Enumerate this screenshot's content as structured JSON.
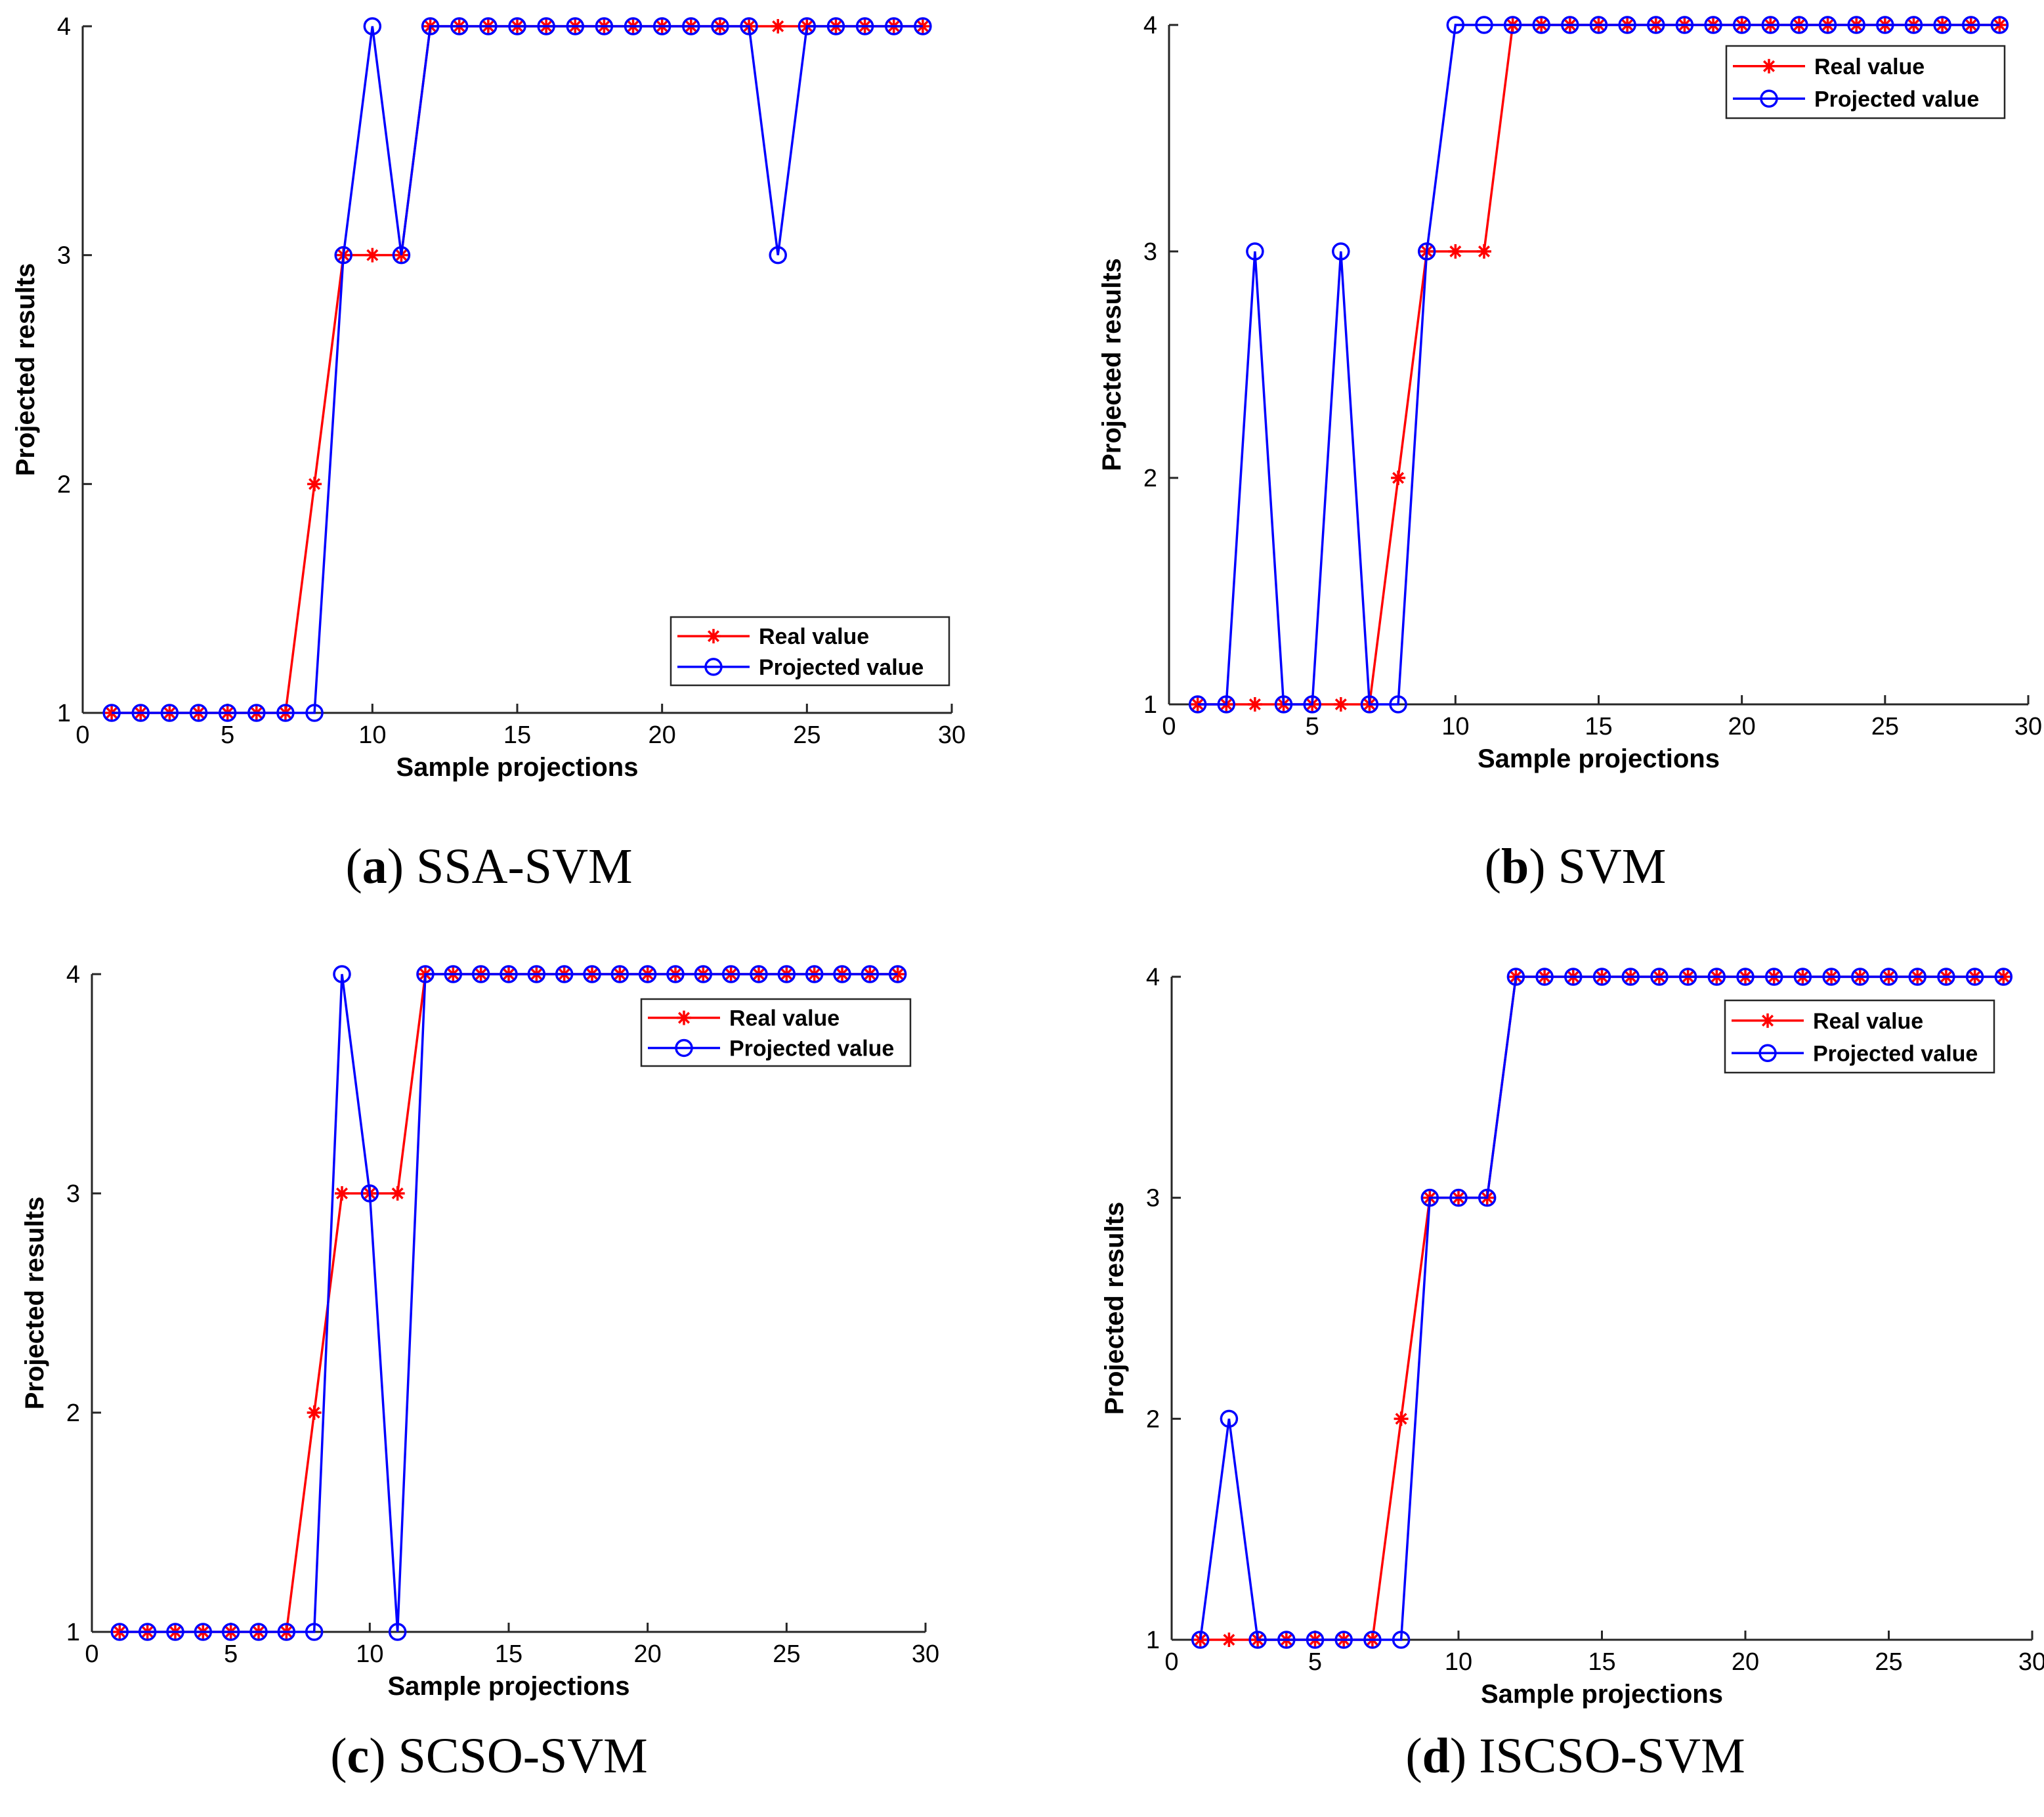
{
  "chart_data": [
    {
      "type": "line",
      "panel_letter": "a",
      "panel_name": "SSA-SVM",
      "xlabel": "Sample projections",
      "ylabel": "Projected results",
      "xlim": [
        0,
        30
      ],
      "ylim": [
        1,
        4
      ],
      "xticks": [
        0,
        5,
        10,
        15,
        20,
        25,
        30
      ],
      "yticks": [
        1,
        2,
        3,
        4
      ],
      "legend_position": "bottom-right",
      "x": [
        1,
        2,
        3,
        4,
        5,
        6,
        7,
        8,
        9,
        10,
        11,
        12,
        13,
        14,
        15,
        16,
        17,
        18,
        19,
        20,
        21,
        22,
        23,
        24,
        25,
        26,
        27,
        28,
        29
      ],
      "series": [
        {
          "name": "Real value",
          "color": "#ff0000",
          "marker": "asterisk",
          "values": [
            1,
            1,
            1,
            1,
            1,
            1,
            1,
            2,
            3,
            3,
            3,
            4,
            4,
            4,
            4,
            4,
            4,
            4,
            4,
            4,
            4,
            4,
            4,
            4,
            4,
            4,
            4,
            4,
            4
          ]
        },
        {
          "name": "Projected value",
          "color": "#0000ff",
          "marker": "circle",
          "values": [
            1,
            1,
            1,
            1,
            1,
            1,
            1,
            1,
            3,
            4,
            3,
            4,
            4,
            4,
            4,
            4,
            4,
            4,
            4,
            4,
            4,
            4,
            4,
            3,
            4,
            4,
            4,
            4,
            4
          ]
        }
      ]
    },
    {
      "type": "line",
      "panel_letter": "b",
      "panel_name": "SVM",
      "xlabel": "Sample projections",
      "ylabel": "Projected results",
      "xlim": [
        0,
        30
      ],
      "ylim": [
        1,
        4
      ],
      "xticks": [
        0,
        5,
        10,
        15,
        20,
        25,
        30
      ],
      "yticks": [
        1,
        2,
        3,
        4
      ],
      "legend_position": "top-right",
      "x": [
        1,
        2,
        3,
        4,
        5,
        6,
        7,
        8,
        9,
        10,
        11,
        12,
        13,
        14,
        15,
        16,
        17,
        18,
        19,
        20,
        21,
        22,
        23,
        24,
        25,
        26,
        27,
        28,
        29
      ],
      "series": [
        {
          "name": "Real value",
          "color": "#ff0000",
          "marker": "asterisk",
          "values": [
            1,
            1,
            1,
            1,
            1,
            1,
            1,
            2,
            3,
            3,
            3,
            4,
            4,
            4,
            4,
            4,
            4,
            4,
            4,
            4,
            4,
            4,
            4,
            4,
            4,
            4,
            4,
            4,
            4
          ]
        },
        {
          "name": "Projected value",
          "color": "#0000ff",
          "marker": "circle",
          "values": [
            1,
            1,
            3,
            1,
            1,
            3,
            1,
            1,
            3,
            4,
            4,
            4,
            4,
            4,
            4,
            4,
            4,
            4,
            4,
            4,
            4,
            4,
            4,
            4,
            4,
            4,
            4,
            4,
            4
          ]
        }
      ]
    },
    {
      "type": "line",
      "panel_letter": "c",
      "panel_name": "SCSO-SVM",
      "xlabel": "Sample projections",
      "ylabel": "Projected results",
      "xlim": [
        0,
        30
      ],
      "ylim": [
        1,
        4
      ],
      "xticks": [
        0,
        5,
        10,
        15,
        20,
        25,
        30
      ],
      "yticks": [
        1,
        2,
        3,
        4
      ],
      "legend_position": "top-right",
      "x": [
        1,
        2,
        3,
        4,
        5,
        6,
        7,
        8,
        9,
        10,
        11,
        12,
        13,
        14,
        15,
        16,
        17,
        18,
        19,
        20,
        21,
        22,
        23,
        24,
        25,
        26,
        27,
        28,
        29
      ],
      "series": [
        {
          "name": "Real value",
          "color": "#ff0000",
          "marker": "asterisk",
          "values": [
            1,
            1,
            1,
            1,
            1,
            1,
            1,
            2,
            3,
            3,
            3,
            4,
            4,
            4,
            4,
            4,
            4,
            4,
            4,
            4,
            4,
            4,
            4,
            4,
            4,
            4,
            4,
            4,
            4
          ]
        },
        {
          "name": "Projected value",
          "color": "#0000ff",
          "marker": "circle",
          "values": [
            1,
            1,
            1,
            1,
            1,
            1,
            1,
            1,
            4,
            3,
            1,
            4,
            4,
            4,
            4,
            4,
            4,
            4,
            4,
            4,
            4,
            4,
            4,
            4,
            4,
            4,
            4,
            4,
            4
          ]
        }
      ]
    },
    {
      "type": "line",
      "panel_letter": "d",
      "panel_name": "ISCSO-SVM",
      "xlabel": "Sample projections",
      "ylabel": "Projected results",
      "xlim": [
        0,
        30
      ],
      "ylim": [
        1,
        4
      ],
      "xticks": [
        0,
        5,
        10,
        15,
        20,
        25,
        30
      ],
      "yticks": [
        1,
        2,
        3,
        4
      ],
      "legend_position": "top-right",
      "x": [
        1,
        2,
        3,
        4,
        5,
        6,
        7,
        8,
        9,
        10,
        11,
        12,
        13,
        14,
        15,
        16,
        17,
        18,
        19,
        20,
        21,
        22,
        23,
        24,
        25,
        26,
        27,
        28,
        29
      ],
      "series": [
        {
          "name": "Real value",
          "color": "#ff0000",
          "marker": "asterisk",
          "values": [
            1,
            1,
            1,
            1,
            1,
            1,
            1,
            2,
            3,
            3,
            3,
            4,
            4,
            4,
            4,
            4,
            4,
            4,
            4,
            4,
            4,
            4,
            4,
            4,
            4,
            4,
            4,
            4,
            4
          ]
        },
        {
          "name": "Projected value",
          "color": "#0000ff",
          "marker": "circle",
          "values": [
            1,
            2,
            1,
            1,
            1,
            1,
            1,
            1,
            3,
            3,
            3,
            4,
            4,
            4,
            4,
            4,
            4,
            4,
            4,
            4,
            4,
            4,
            4,
            4,
            4,
            4,
            4,
            4,
            4
          ]
        }
      ]
    }
  ]
}
